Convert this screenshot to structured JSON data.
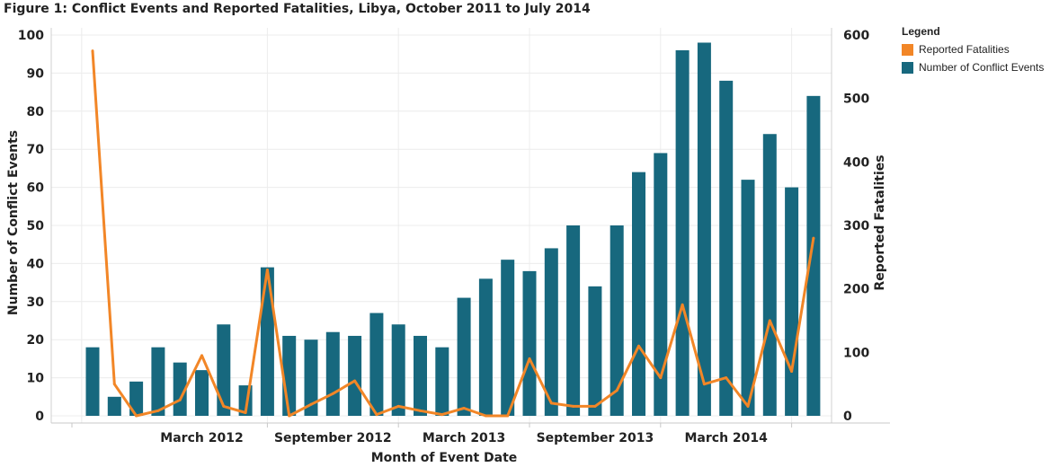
{
  "chart_data": {
    "type": "bar",
    "title": "Figure 1: Conflict Events and Reported Fatalities, Libya, October 2011 to July 2014",
    "xlabel": "Month of Event Date",
    "ylabel_left": "Number of Conflict Events",
    "ylabel_right": "Reported Fatalities",
    "ylim_left": [
      0,
      100
    ],
    "ylim_right": [
      0,
      600
    ],
    "yticks_left": [
      "100",
      "90",
      "80",
      "70",
      "60",
      "50",
      "40",
      "30",
      "20",
      "10",
      "0"
    ],
    "yticks_right": [
      "600",
      "500",
      "400",
      "300",
      "200",
      "100",
      "0"
    ],
    "xtick_labels": [
      "March 2012",
      "September 2012",
      "March 2013",
      "September 2013",
      "March 2014"
    ],
    "grid": true,
    "legend": {
      "title": "Legend",
      "placement": "right",
      "entries": [
        "Reported Fatalities",
        "Number of Conflict Events"
      ]
    },
    "series": [
      {
        "name": "Number of Conflict Events",
        "type": "bar",
        "axis": "left",
        "color": "#17687e",
        "values": [
          18,
          5,
          9,
          18,
          14,
          12,
          24,
          8,
          39,
          21,
          20,
          22,
          21,
          27,
          24,
          21,
          18,
          31,
          36,
          41,
          38,
          44,
          50,
          34,
          50,
          64,
          69,
          96,
          98,
          88,
          62,
          74,
          60,
          84
        ]
      },
      {
        "name": "Reported Fatalities",
        "type": "line",
        "axis": "right",
        "color": "#f28627",
        "values": [
          575,
          50,
          0,
          8,
          25,
          95,
          15,
          5,
          230,
          0,
          18,
          35,
          55,
          2,
          15,
          8,
          2,
          12,
          0,
          0,
          90,
          20,
          15,
          15,
          40,
          110,
          60,
          175,
          50,
          60,
          15,
          150,
          70,
          280
        ]
      }
    ]
  }
}
